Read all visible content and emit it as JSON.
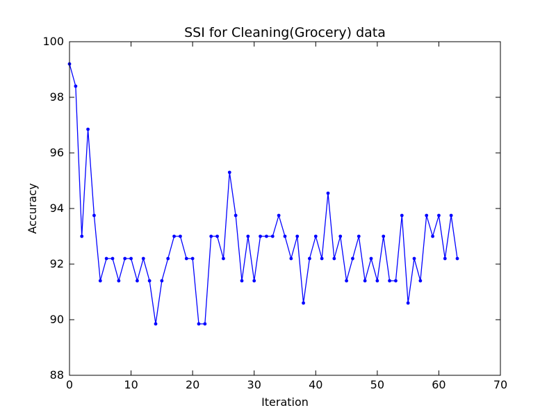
{
  "chart_data": {
    "type": "line",
    "title": "SSI for Cleaning(Grocery) data",
    "xlabel": "Iteration",
    "ylabel": "Accuracy",
    "xlim": [
      0,
      70
    ],
    "ylim": [
      88,
      100
    ],
    "xticks": [
      "0",
      "10",
      "20",
      "30",
      "40",
      "50",
      "60",
      "70"
    ],
    "yticks": [
      "88",
      "90",
      "92",
      "94",
      "96",
      "98",
      "100"
    ],
    "grid": false,
    "legend": "none",
    "series": [
      {
        "color": "#0000ff",
        "marker": "circle",
        "x": [
          0,
          1,
          2,
          3,
          4,
          5,
          6,
          7,
          8,
          9,
          10,
          11,
          12,
          13,
          14,
          15,
          16,
          17,
          18,
          19,
          20,
          21,
          22,
          23,
          24,
          25,
          26,
          27,
          28,
          29,
          30,
          31,
          32,
          33,
          34,
          35,
          36,
          37,
          38,
          39,
          40,
          41,
          42,
          43,
          44,
          45,
          46,
          47,
          48,
          49,
          50,
          51,
          52,
          53,
          54,
          55,
          56,
          57,
          58,
          59,
          60,
          61,
          62,
          63
        ],
        "y": [
          99.2,
          98.4,
          93.0,
          96.85,
          93.75,
          91.4,
          92.2,
          92.2,
          91.4,
          92.2,
          92.2,
          91.4,
          92.2,
          91.4,
          89.85,
          91.4,
          92.2,
          93.0,
          93.0,
          92.2,
          92.2,
          89.85,
          89.85,
          93.0,
          93.0,
          92.2,
          95.3,
          93.75,
          91.4,
          93.0,
          91.4,
          93.0,
          93.0,
          93.0,
          93.75,
          93.0,
          92.2,
          93.0,
          90.6,
          92.2,
          93.0,
          92.2,
          94.55,
          92.2,
          93.0,
          91.4,
          92.2,
          93.0,
          91.4,
          92.2,
          91.4,
          93.0,
          91.4,
          91.4,
          93.75,
          90.6,
          92.2,
          91.4,
          93.75,
          93.0,
          93.75,
          92.2,
          93.75,
          92.2
        ]
      }
    ]
  }
}
